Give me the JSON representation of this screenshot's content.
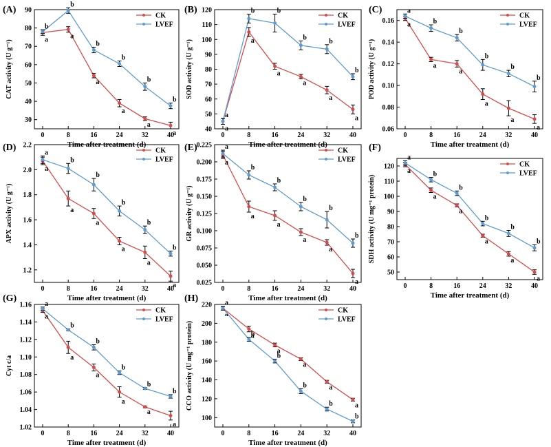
{
  "colors": {
    "CK": "#d84a4a",
    "LVEF": "#5e9bd0"
  },
  "chart_data": [
    {
      "type": "line",
      "panel": "(A)",
      "ylabel": "CAT activity (U g⁻¹)",
      "xlabel": "Time after treatment (d)",
      "x": [
        0,
        8,
        16,
        24,
        32,
        40
      ],
      "ylim": [
        25,
        90
      ],
      "yticks": [
        30,
        40,
        50,
        60,
        70,
        80,
        90
      ],
      "series": [
        {
          "name": "CK",
          "values": [
            77.5,
            79.2,
            54.0,
            39.0,
            30.5,
            26.8
          ],
          "err": [
            1.5,
            1.5,
            1.2,
            2.0,
            1.0,
            1.8
          ],
          "sig": [
            "a",
            "a",
            "a",
            "a",
            "a",
            "a"
          ]
        },
        {
          "name": "LVEF",
          "values": [
            78.0,
            89.5,
            68.0,
            60.5,
            48.0,
            37.5
          ],
          "err": [
            1.0,
            1.5,
            1.5,
            1.5,
            2.0,
            1.5
          ],
          "sig": [
            "b",
            "b",
            "b",
            "b",
            "b",
            "b"
          ]
        }
      ]
    },
    {
      "type": "line",
      "panel": "(B)",
      "ylabel": "SOD activity (U g⁻¹)",
      "xlabel": "Time after treatment (d)",
      "x": [
        0,
        8,
        16,
        24,
        32,
        40
      ],
      "ylim": [
        40,
        120
      ],
      "yticks": [
        40,
        50,
        60,
        70,
        80,
        90,
        100,
        110,
        120
      ],
      "series": [
        {
          "name": "CK",
          "values": [
            45,
            105,
            82,
            75,
            66,
            53
          ],
          "err": [
            2.0,
            3.0,
            2.0,
            1.5,
            2.5,
            3.0
          ],
          "sig": [
            "a",
            "a",
            "a",
            "a",
            "a",
            "a"
          ]
        },
        {
          "name": "LVEF",
          "values": [
            45,
            114,
            111,
            96,
            93.5,
            75
          ],
          "err": [
            2.0,
            3.0,
            6.0,
            3.0,
            3.0,
            2.0
          ],
          "sig": [
            "a",
            "b",
            "b",
            "b",
            "b",
            "b"
          ]
        }
      ]
    },
    {
      "type": "line",
      "panel": "(C)",
      "ylabel": "POD activity (U g⁻¹)",
      "xlabel": "Time after treatment (d)",
      "x": [
        0,
        8,
        16,
        24,
        32,
        40
      ],
      "ylim": [
        0.06,
        0.17
      ],
      "yticks": [
        0.06,
        0.08,
        0.1,
        0.12,
        0.14,
        0.16
      ],
      "series": [
        {
          "name": "CK",
          "values": [
            0.162,
            0.124,
            0.12,
            0.092,
            0.079,
            0.069
          ],
          "err": [
            0.002,
            0.002,
            0.003,
            0.005,
            0.007,
            0.004
          ],
          "sig": [
            "a",
            "a",
            "a",
            "a",
            "a",
            "a"
          ]
        },
        {
          "name": "LVEF",
          "values": [
            0.164,
            0.153,
            0.144,
            0.119,
            0.111,
            0.099
          ],
          "err": [
            0.002,
            0.003,
            0.003,
            0.005,
            0.003,
            0.005
          ],
          "sig": [
            "a",
            "b",
            "b",
            "b",
            "b",
            "b"
          ]
        }
      ]
    },
    {
      "type": "line",
      "panel": "(D)",
      "ylabel": "APX activity (U g⁻¹)",
      "xlabel": "Time after treatment (d)",
      "x": [
        0,
        8,
        16,
        24,
        32,
        40
      ],
      "ylim": [
        1.1,
        2.2
      ],
      "yticks": [
        1.2,
        1.4,
        1.6,
        1.8,
        2.0,
        2.2
      ],
      "series": [
        {
          "name": "CK",
          "values": [
            2.07,
            1.77,
            1.65,
            1.43,
            1.34,
            1.15
          ],
          "err": [
            0.03,
            0.06,
            0.04,
            0.03,
            0.05,
            0.04
          ],
          "sig": [
            "a",
            "a",
            "a",
            "a",
            "a",
            "a"
          ]
        },
        {
          "name": "LVEF",
          "values": [
            2.08,
            2.01,
            1.88,
            1.67,
            1.52,
            1.33
          ],
          "err": [
            0.03,
            0.04,
            0.05,
            0.04,
            0.03,
            0.02
          ],
          "sig": [
            "a",
            "b",
            "b",
            "b",
            "b",
            "b"
          ]
        }
      ]
    },
    {
      "type": "line",
      "panel": "(E)",
      "ylabel": "GR activity (U g⁻¹)",
      "xlabel": "Time after treatment (d)",
      "x": [
        0,
        8,
        16,
        24,
        32,
        40
      ],
      "ylim": [
        0.025,
        0.225
      ],
      "yticks": [
        0.025,
        0.05,
        0.075,
        0.1,
        0.125,
        0.15,
        0.175,
        0.2,
        0.225
      ],
      "yticklabels": [
        "0.025",
        "0.050",
        "0.075",
        "0.100",
        "0.125",
        "0.150",
        "0.175",
        "0.200",
        "0.225"
      ],
      "series": [
        {
          "name": "CK",
          "values": [
            0.21,
            0.135,
            0.122,
            0.098,
            0.083,
            0.038
          ],
          "err": [
            0.005,
            0.008,
            0.007,
            0.005,
            0.004,
            0.006
          ],
          "sig": [
            "a",
            "a",
            "a",
            "a",
            "a",
            "a"
          ]
        },
        {
          "name": "LVEF",
          "values": [
            0.212,
            0.181,
            0.163,
            0.135,
            0.116,
            0.082
          ],
          "err": [
            0.005,
            0.006,
            0.005,
            0.006,
            0.012,
            0.006
          ],
          "sig": [
            "a",
            "b",
            "b",
            "b",
            "b",
            "b"
          ]
        }
      ]
    },
    {
      "type": "line",
      "panel": "(F)",
      "ylabel": "SDH activity (U mg⁻¹ protein)",
      "xlabel": "Time after treatment (d)",
      "x": [
        0,
        8,
        16,
        24,
        32,
        40
      ],
      "ylim": [
        45,
        125
      ],
      "yticks": [
        50,
        60,
        70,
        80,
        90,
        100,
        110,
        120
      ],
      "series": [
        {
          "name": "CK",
          "values": [
            121,
            104,
            94,
            74,
            62,
            50
          ],
          "err": [
            1.5,
            1.5,
            1.0,
            1.0,
            1.5,
            1.5
          ],
          "sig": [
            "a",
            "a",
            "a",
            "a",
            "a",
            "a"
          ]
        },
        {
          "name": "LVEF",
          "values": [
            122,
            111,
            102,
            82,
            75.5,
            66
          ],
          "err": [
            1.5,
            1.5,
            1.5,
            1.5,
            2.0,
            2.0
          ],
          "sig": [
            "a",
            "b",
            "b",
            "b",
            "b",
            "b"
          ]
        }
      ]
    },
    {
      "type": "line",
      "panel": "(G)",
      "ylabel": "Cyt c/a",
      "xlabel": "Time after treatment (d)",
      "x": [
        0,
        8,
        16,
        24,
        32,
        40
      ],
      "ylim": [
        1.02,
        1.16
      ],
      "yticks": [
        1.02,
        1.04,
        1.06,
        1.08,
        1.1,
        1.12,
        1.14,
        1.16
      ],
      "series": [
        {
          "name": "CK",
          "values": [
            1.153,
            1.111,
            1.088,
            1.06,
            1.043,
            1.033
          ],
          "err": [
            0.002,
            0.007,
            0.004,
            0.006,
            0.001,
            0.005
          ],
          "sig": [
            "a",
            "a",
            "a",
            "a",
            "a",
            "a"
          ]
        },
        {
          "name": "LVEF",
          "values": [
            1.155,
            1.131,
            1.111,
            1.082,
            1.064,
            1.055
          ],
          "err": [
            0.002,
            0.001,
            0.003,
            0.002,
            0.001,
            0.002
          ],
          "sig": [
            "a",
            "b",
            "b",
            "b",
            "b",
            "b"
          ]
        }
      ]
    },
    {
      "type": "line",
      "panel": "(H)",
      "ylabel": "CCO activity (U mg⁻¹ protein)",
      "xlabel": "Time after treatment (d)",
      "x": [
        0,
        8,
        16,
        24,
        32,
        40
      ],
      "ylim": [
        90,
        220
      ],
      "yticks": [
        100,
        120,
        140,
        160,
        180,
        200,
        220
      ],
      "series": [
        {
          "name": "CK",
          "values": [
            216,
            194,
            177,
            162,
            138,
            119
          ],
          "err": [
            2.0,
            3.0,
            2.0,
            1.5,
            1.5,
            1.5
          ],
          "sig": [
            "a",
            "a",
            "a",
            "a",
            "a",
            "a"
          ]
        },
        {
          "name": "LVEF",
          "values": [
            216,
            183,
            160,
            128,
            109,
            96
          ],
          "err": [
            2.0,
            2.0,
            2.0,
            2.5,
            2.0,
            1.5
          ],
          "sig": [
            "a",
            "b",
            "b",
            "b",
            "b",
            "b"
          ]
        }
      ]
    }
  ]
}
